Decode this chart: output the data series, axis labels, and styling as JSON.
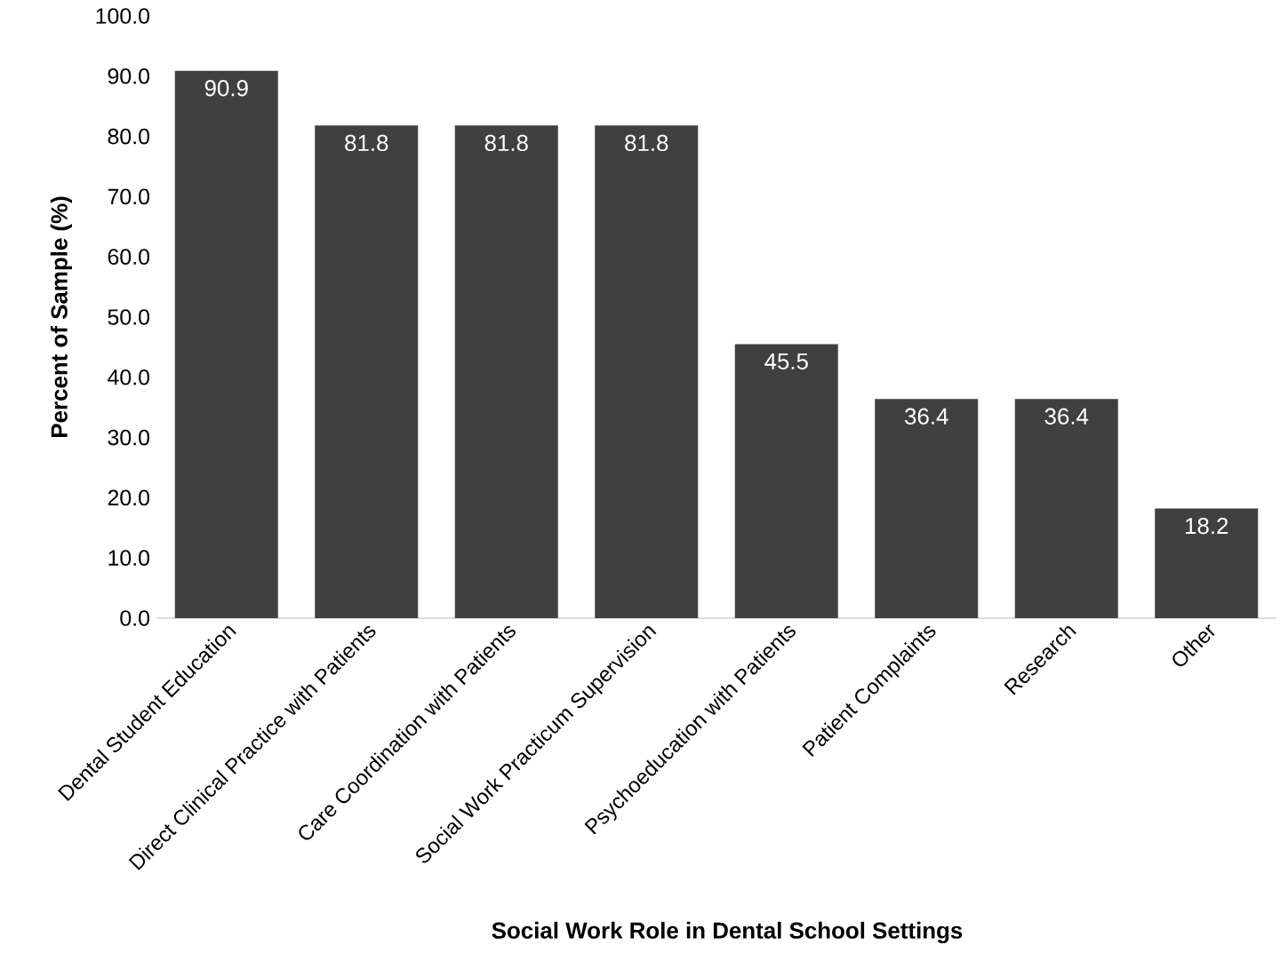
{
  "chart_data": {
    "type": "bar",
    "xlabel": "Social Work Role in Dental School Settings",
    "ylabel": "Percent of Sample (%)",
    "categories": [
      "Dental Student Education",
      "Direct Clinical Practice with Patients",
      "Care Coordination with Patients",
      "Social Work Practicum Supervision",
      "Psychoeducation with Patients",
      "Patient Complaints",
      "Research",
      "Other"
    ],
    "values": [
      90.9,
      81.8,
      81.8,
      81.8,
      45.5,
      36.4,
      36.4,
      18.2
    ],
    "color": "#404040",
    "data_labels": true,
    "ylim": [
      0,
      100
    ],
    "yticks": [
      {
        "value": 0,
        "label": "0.0"
      },
      {
        "value": 10,
        "label": "10.0"
      },
      {
        "value": 20,
        "label": "20.0"
      },
      {
        "value": 30,
        "label": "30.0"
      },
      {
        "value": 40,
        "label": "40.0"
      },
      {
        "value": 50,
        "label": "50.0"
      },
      {
        "value": 60,
        "label": "60.0"
      },
      {
        "value": 70,
        "label": "70.0"
      },
      {
        "value": 80,
        "label": "80.0"
      },
      {
        "value": 90,
        "label": "90.0"
      },
      {
        "value": 100,
        "label": "100.0"
      }
    ],
    "grid": false
  }
}
